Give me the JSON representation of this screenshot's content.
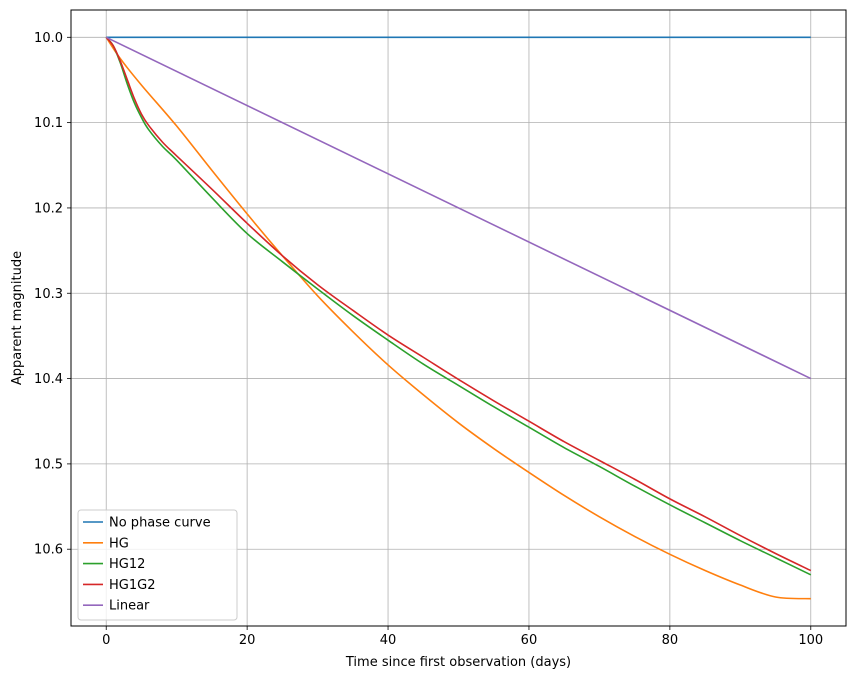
{
  "chart_data": {
    "type": "line",
    "title": "",
    "xlabel": "Time since first observation (days)",
    "ylabel": "Apparent magnitude",
    "xlim": [
      -5,
      105
    ],
    "ylim": [
      10.69,
      9.968
    ],
    "y_inverted": true,
    "grid": true,
    "legend_position": "lower-left",
    "x_ticks": [
      0,
      20,
      40,
      60,
      80,
      100
    ],
    "x_tick_labels": [
      "0",
      "20",
      "40",
      "60",
      "80",
      "100"
    ],
    "y_ticks": [
      10.0,
      10.1,
      10.2,
      10.3,
      10.4,
      10.5,
      10.6
    ],
    "y_tick_labels": [
      "10.0",
      "10.1",
      "10.2",
      "10.3",
      "10.4",
      "10.5",
      "10.6"
    ],
    "series": [
      {
        "name": "No phase curve",
        "color": "#1f77b4",
        "x": [
          0,
          100
        ],
        "y": [
          10.0,
          10.0
        ]
      },
      {
        "name": "HG",
        "color": "#ff7f0e",
        "x": [
          0,
          2,
          5,
          10,
          15,
          20,
          25,
          30,
          35,
          40,
          45,
          50,
          55,
          60,
          65,
          70,
          75,
          80,
          85,
          90,
          95,
          100
        ],
        "y": [
          10.0,
          10.025,
          10.056,
          10.104,
          10.156,
          10.207,
          10.256,
          10.303,
          10.345,
          10.384,
          10.419,
          10.452,
          10.482,
          10.51,
          10.537,
          10.562,
          10.585,
          10.606,
          10.625,
          10.642,
          10.656,
          10.658
        ]
      },
      {
        "name": "HG12",
        "color": "#2ca02c",
        "x": [
          0,
          1,
          2,
          3,
          4,
          5,
          6,
          8,
          10,
          15,
          20,
          25,
          30,
          35,
          40,
          45,
          50,
          55,
          60,
          65,
          70,
          75,
          80,
          85,
          90,
          95,
          100
        ],
        "y": [
          10.0,
          10.01,
          10.03,
          10.055,
          10.077,
          10.094,
          10.108,
          10.128,
          10.144,
          10.188,
          10.23,
          10.263,
          10.295,
          10.326,
          10.355,
          10.383,
          10.408,
          10.433,
          10.457,
          10.481,
          10.503,
          10.526,
          10.548,
          10.569,
          10.59,
          10.61,
          10.63
        ]
      },
      {
        "name": "HG1G2",
        "color": "#d62728",
        "x": [
          0,
          1,
          2,
          3,
          4,
          5,
          6,
          8,
          10,
          15,
          20,
          25,
          30,
          35,
          40,
          45,
          50,
          55,
          60,
          65,
          70,
          75,
          80,
          85,
          90,
          95,
          100
        ],
        "y": [
          10.0,
          10.01,
          10.028,
          10.05,
          10.072,
          10.09,
          10.103,
          10.123,
          10.139,
          10.178,
          10.218,
          10.256,
          10.29,
          10.32,
          10.349,
          10.375,
          10.401,
          10.426,
          10.45,
          10.474,
          10.496,
          10.518,
          10.541,
          10.562,
          10.584,
          10.605,
          10.625
        ]
      },
      {
        "name": "Linear",
        "color": "#9467bd",
        "x": [
          0,
          100
        ],
        "y": [
          10.0,
          10.4
        ]
      }
    ]
  }
}
